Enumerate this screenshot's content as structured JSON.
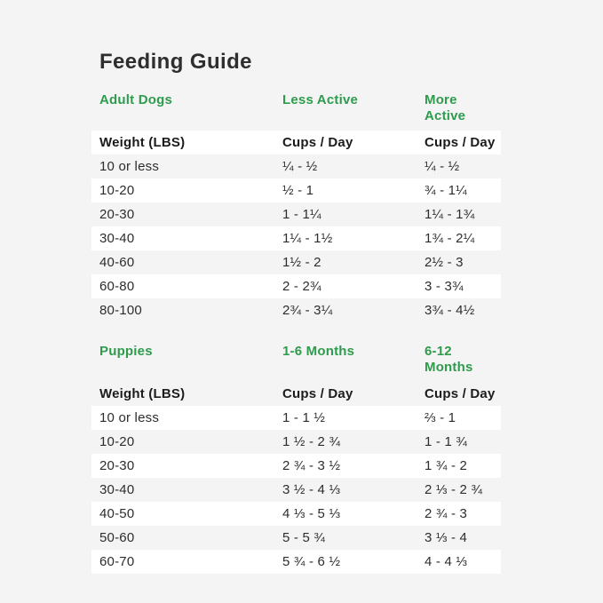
{
  "title": "Feeding Guide",
  "colors": {
    "accent_green": "#2e9b4d",
    "page_bg": "#f4f4f5",
    "row_highlight": "#ffffff",
    "text_dark": "#2d2d2d"
  },
  "tables": [
    {
      "section": {
        "col1": "Adult Dogs",
        "col2": "Less Active",
        "col3": "More Active"
      },
      "header": {
        "col1": "Weight (LBS)",
        "col2": "Cups / Day",
        "col3": "Cups / Day"
      },
      "rows": [
        {
          "weight": "10 or less",
          "col2": "¼ - ½",
          "col3": "¼ - ½"
        },
        {
          "weight": "10-20",
          "col2": "½ - 1",
          "col3": "¾ - 1¼"
        },
        {
          "weight": "20-30",
          "col2": "1 - 1¼",
          "col3": "1¼ - 1¾"
        },
        {
          "weight": "30-40",
          "col2": "1¼ - 1½",
          "col3": "1¾ - 2¼"
        },
        {
          "weight": "40-60",
          "col2": "1½ - 2",
          "col3": "2½ - 3"
        },
        {
          "weight": "60-80",
          "col2": "2 - 2¾",
          "col3": "3 - 3¾"
        },
        {
          "weight": "80-100",
          "col2": "2¾ - 3¼",
          "col3": "3¾ - 4½"
        }
      ]
    },
    {
      "section": {
        "col1": "Puppies",
        "col2": "1-6 Months",
        "col3": "6-12 Months"
      },
      "header": {
        "col1": "Weight (LBS)",
        "col2": "Cups / Day",
        "col3": "Cups / Day"
      },
      "rows": [
        {
          "weight": "10 or less",
          "col2": "1 - 1 ½",
          "col3": "⅔ - 1"
        },
        {
          "weight": "10-20",
          "col2": "1 ½ - 2 ¾",
          "col3": "1 - 1 ¾"
        },
        {
          "weight": "20-30",
          "col2": "2 ¾ - 3 ½",
          "col3": "1 ¾ - 2"
        },
        {
          "weight": "30-40",
          "col2": "3 ½ - 4 ⅓",
          "col3": "2 ⅓ - 2 ¾"
        },
        {
          "weight": "40-50",
          "col2": "4 ⅓ - 5 ⅓",
          "col3": "2 ¾ - 3"
        },
        {
          "weight": "50-60",
          "col2": "5 - 5 ¾",
          "col3": "3 ⅓ - 4"
        },
        {
          "weight": "60-70",
          "col2": "5 ¾ - 6 ½",
          "col3": "4 - 4 ⅓"
        }
      ]
    }
  ]
}
